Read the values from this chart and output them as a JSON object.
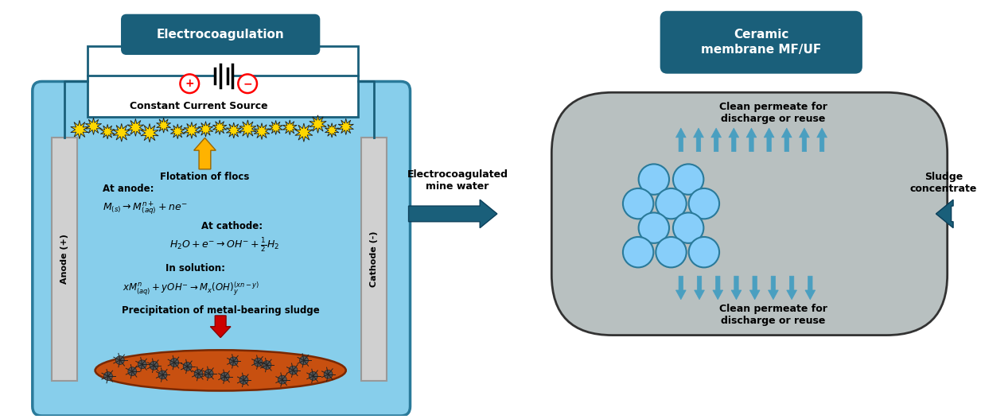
{
  "title_ec": "Electrocoagulation",
  "title_cm": "Ceramic\nmembrane MF/UF",
  "title_ec_bg": "#1a5f7a",
  "title_cm_bg": "#1a5f7a",
  "title_text_color": "#ffffff",
  "tank_fill_color": "#87CEEB",
  "tank_border_color": "#2a7a9a",
  "electrode_color": "#d0d0d0",
  "electrode_border": "#999999",
  "anode_label": "Anode (+)",
  "cathode_label": "Cathode (-)",
  "floc_color": "#FFD700",
  "floc_edge": "#1a1a1a",
  "sludge_color": "#c85010",
  "sludge_edge": "#7a2800",
  "wire_color": "#1a5f7a",
  "arrow_color_ec": "#1a5f7a",
  "arrow_color_blue": "#4a9fc0",
  "arrow_color_yellow": "#FFB300",
  "arrow_color_red": "#cc0000",
  "membrane_body_color": "#b8c0c0",
  "membrane_border_color": "#333333",
  "channel_color": "#87CEFA",
  "channel_border": "#2a7a9a",
  "label_flotation": "Flotation of flocs",
  "label_precip": "Precipitation of metal-bearing sludge",
  "label_ec_water": "Electrocoagulated\nmine water",
  "label_sludge": "Sludge\nconcentrate",
  "label_permeate_top": "Clean permeate for\ndischarge or reuse",
  "label_permeate_bot": "Clean permeate for\ndischarge or reuse",
  "label_constant": "Constant Current Source",
  "label_anode_eq": "At anode:",
  "eq_anode": "$M_{(s)} \\rightarrow M_{(aq)}^{n+} + ne^{-}$",
  "label_cathode_eq": "At cathode:",
  "eq_cathode": "$H_2O + e^{-} \\rightarrow OH^{-} + \\frac{1}{2}H_2$",
  "label_solution_eq": "In solution:",
  "eq_solution": "$xM_{(aq)}^{n} + yOH^{-} \\rightarrow M_x(OH)_y^{(xn-y)}$",
  "background_color": "#ffffff",
  "plus_color": "#ff0000",
  "minus_color": "#ff0000"
}
